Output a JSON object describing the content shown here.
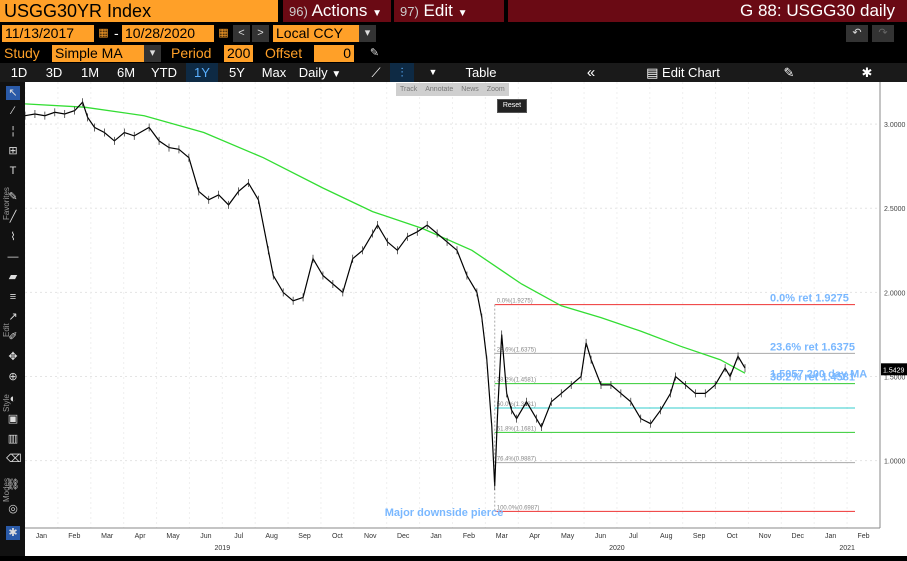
{
  "toolbar": {
    "security": "USGG30YR Index",
    "actions_num": "96)",
    "actions_label": "Actions",
    "edit_num": "97)",
    "edit_label": "Edit",
    "chart_ref": "G 88: USGG30 daily"
  },
  "dates": {
    "start": "11/13/2017",
    "separator": "-",
    "end": "10/28/2020",
    "currency": "Local CCY"
  },
  "study": {
    "label": "Study",
    "value": "Simple MA",
    "period_label": "Period",
    "period_value": "200",
    "offset_label": "Offset",
    "offset_value": "0"
  },
  "tabs": {
    "ranges": [
      "1D",
      "3D",
      "1M",
      "6M",
      "YTD",
      "1Y",
      "5Y",
      "Max"
    ],
    "active_range": "1Y",
    "frequency": "Daily",
    "table_label": "Table",
    "edit_chart_label": "Edit Chart"
  },
  "mini_toolbar": [
    "Track",
    "Annotate",
    "News",
    "Zoom"
  ],
  "reset_label": "Reset",
  "sidebar_labels": [
    "Favorites",
    "Edit",
    "Style",
    "Modes"
  ],
  "colors": {
    "orange": "#ffa028",
    "header_red": "#6a0a14",
    "price": "#000000",
    "ma": "#33dd33",
    "fib_red": "#ee3333",
    "fib_green": "#33cc33",
    "fib_cyan": "#33cccc",
    "fib_grey": "#aaaaaa",
    "label_blue": "#7ab8ff"
  },
  "chart_data": {
    "type": "line",
    "y_ticks": [
      "3.0000",
      "2.5000",
      "2.0000",
      "1.5000",
      "1.0000"
    ],
    "ylim": [
      0.6,
      3.25
    ],
    "x_month_labels": [
      "Jan",
      "Feb",
      "Mar",
      "Apr",
      "May",
      "Jun",
      "Jul",
      "Aug",
      "Sep",
      "Oct",
      "Nov",
      "Dec",
      "Jan",
      "Feb",
      "Mar",
      "Apr",
      "May",
      "Jun",
      "Jul",
      "Aug",
      "Sep",
      "Oct",
      "Nov",
      "Dec",
      "Jan",
      "Feb"
    ],
    "x_year_labels": [
      "2019",
      "2020",
      "2021"
    ],
    "last_price": "1.5429",
    "annotation": "Major downside pierce",
    "fib_levels": [
      {
        "level": 1.9275,
        "small": "0.0%(1.9275)",
        "big": "0.0% ret 1.9275",
        "color": "#ee3333"
      },
      {
        "level": 1.6375,
        "small": "23.6%(1.6375)",
        "big": "23.6% ret 1.6375",
        "color": "#aaaaaa"
      },
      {
        "level": 1.4581,
        "small": "38.2%(1.4581)",
        "big": "38.2% ret 1.4581",
        "color": "#33cc33"
      },
      {
        "level": 1.3131,
        "small": "50.0%(1.3131)",
        "big": "",
        "color": "#33cccc"
      },
      {
        "level": 1.1681,
        "small": "61.8%(1.1681)",
        "big": "",
        "color": "#33cc33"
      },
      {
        "level": 0.9887,
        "small": "76.4%(0.9887)",
        "big": "",
        "color": "#aaaaaa"
      },
      {
        "level": 0.6987,
        "small": "100.0%(0.6987)",
        "big": "",
        "color": "#ee3333"
      }
    ],
    "ma_label": "1.5057 200 day MA",
    "price_series": [
      [
        0,
        3.05
      ],
      [
        10,
        3.06
      ],
      [
        20,
        3.05
      ],
      [
        30,
        3.07
      ],
      [
        40,
        3.06
      ],
      [
        50,
        3.08
      ],
      [
        58,
        3.13
      ],
      [
        63,
        3.04
      ],
      [
        70,
        2.98
      ],
      [
        80,
        2.95
      ],
      [
        90,
        2.9
      ],
      [
        100,
        2.95
      ],
      [
        110,
        2.93
      ],
      [
        125,
        2.98
      ],
      [
        135,
        2.9
      ],
      [
        145,
        2.86
      ],
      [
        155,
        2.85
      ],
      [
        165,
        2.8
      ],
      [
        175,
        2.6
      ],
      [
        185,
        2.55
      ],
      [
        195,
        2.58
      ],
      [
        205,
        2.52
      ],
      [
        215,
        2.6
      ],
      [
        225,
        2.65
      ],
      [
        235,
        2.55
      ],
      [
        245,
        2.25
      ],
      [
        250,
        2.1
      ],
      [
        260,
        2.0
      ],
      [
        270,
        1.95
      ],
      [
        280,
        1.97
      ],
      [
        290,
        2.2
      ],
      [
        300,
        2.1
      ],
      [
        310,
        2.05
      ],
      [
        320,
        2.0
      ],
      [
        330,
        2.2
      ],
      [
        340,
        2.25
      ],
      [
        350,
        2.35
      ],
      [
        355,
        2.4
      ],
      [
        365,
        2.3
      ],
      [
        375,
        2.25
      ],
      [
        385,
        2.33
      ],
      [
        395,
        2.36
      ],
      [
        405,
        2.4
      ],
      [
        415,
        2.35
      ],
      [
        425,
        2.3
      ],
      [
        435,
        2.25
      ],
      [
        445,
        2.1
      ],
      [
        455,
        2.0
      ],
      [
        460,
        1.85
      ],
      [
        465,
        1.6
      ],
      [
        470,
        1.2
      ],
      [
        473,
        0.85
      ],
      [
        476,
        1.3
      ],
      [
        480,
        1.75
      ],
      [
        485,
        1.4
      ],
      [
        490,
        1.3
      ],
      [
        495,
        1.25
      ],
      [
        505,
        1.35
      ],
      [
        515,
        1.25
      ],
      [
        520,
        1.2
      ],
      [
        530,
        1.35
      ],
      [
        540,
        1.4
      ],
      [
        550,
        1.45
      ],
      [
        560,
        1.5
      ],
      [
        565,
        1.7
      ],
      [
        570,
        1.6
      ],
      [
        580,
        1.45
      ],
      [
        590,
        1.45
      ],
      [
        600,
        1.4
      ],
      [
        610,
        1.35
      ],
      [
        620,
        1.25
      ],
      [
        630,
        1.22
      ],
      [
        640,
        1.3
      ],
      [
        650,
        1.4
      ],
      [
        655,
        1.5
      ],
      [
        665,
        1.45
      ],
      [
        675,
        1.4
      ],
      [
        685,
        1.4
      ],
      [
        695,
        1.45
      ],
      [
        705,
        1.55
      ],
      [
        710,
        1.5
      ],
      [
        718,
        1.62
      ],
      [
        725,
        1.55
      ]
    ],
    "ma_series": [
      [
        0,
        3.12
      ],
      [
        60,
        3.1
      ],
      [
        120,
        3.05
      ],
      [
        180,
        2.95
      ],
      [
        240,
        2.8
      ],
      [
        300,
        2.62
      ],
      [
        350,
        2.48
      ],
      [
        400,
        2.38
      ],
      [
        450,
        2.25
      ],
      [
        500,
        2.05
      ],
      [
        540,
        1.92
      ],
      [
        580,
        1.85
      ],
      [
        620,
        1.77
      ],
      [
        660,
        1.68
      ],
      [
        700,
        1.6
      ],
      [
        725,
        1.52
      ]
    ]
  }
}
